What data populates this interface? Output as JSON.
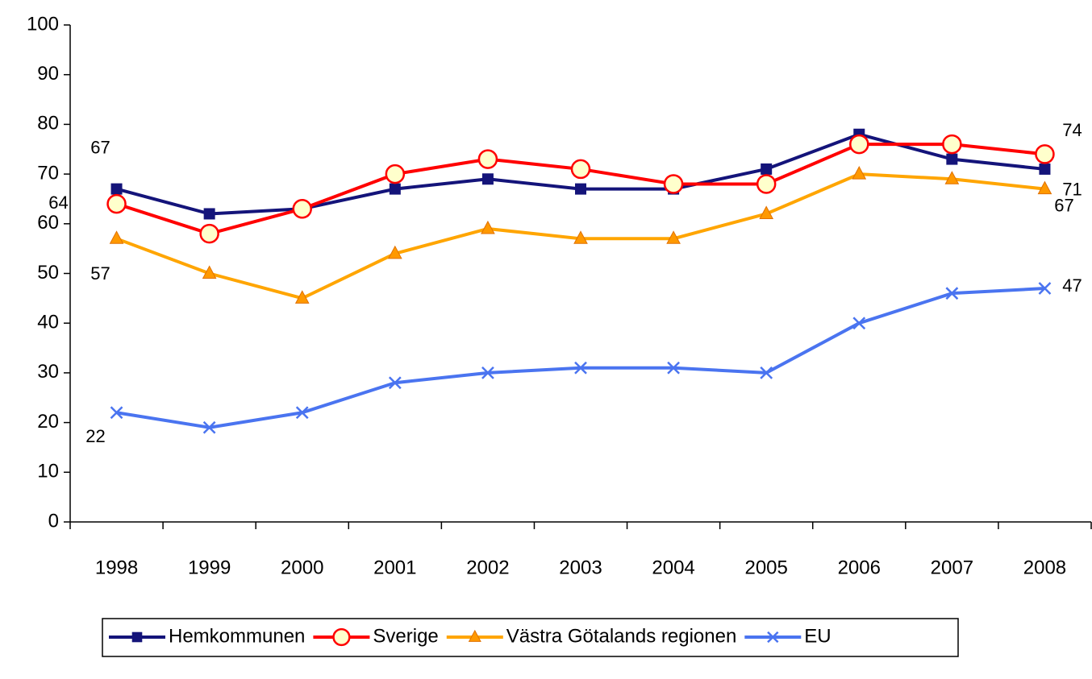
{
  "chart_data": {
    "type": "line",
    "categories": [
      "1998",
      "1999",
      "2000",
      "2001",
      "2002",
      "2003",
      "2004",
      "2005",
      "2006",
      "2007",
      "2008"
    ],
    "series": [
      {
        "name": "Hemkommunen",
        "color": "#14147a",
        "marker": "square",
        "values": [
          67,
          62,
          63,
          67,
          69,
          67,
          67,
          71,
          78,
          73,
          71
        ]
      },
      {
        "name": "Sverige",
        "color": "#ff0000",
        "marker": "circle",
        "values": [
          64,
          58,
          63,
          70,
          73,
          71,
          68,
          68,
          76,
          76,
          74
        ]
      },
      {
        "name": "Västra Götalands regionen",
        "color": "#ffa500",
        "marker": "triangle",
        "values": [
          57,
          50,
          45,
          54,
          59,
          57,
          57,
          62,
          70,
          69,
          67
        ]
      },
      {
        "name": "EU",
        "color": "#4a74f0",
        "marker": "x",
        "values": [
          22,
          19,
          22,
          28,
          30,
          31,
          31,
          30,
          40,
          46,
          47
        ]
      }
    ],
    "ylim": [
      0,
      100
    ],
    "yticks": [
      0,
      10,
      20,
      30,
      40,
      50,
      60,
      70,
      80,
      90,
      100
    ],
    "data_labels": "ends",
    "legend": "bottom"
  }
}
